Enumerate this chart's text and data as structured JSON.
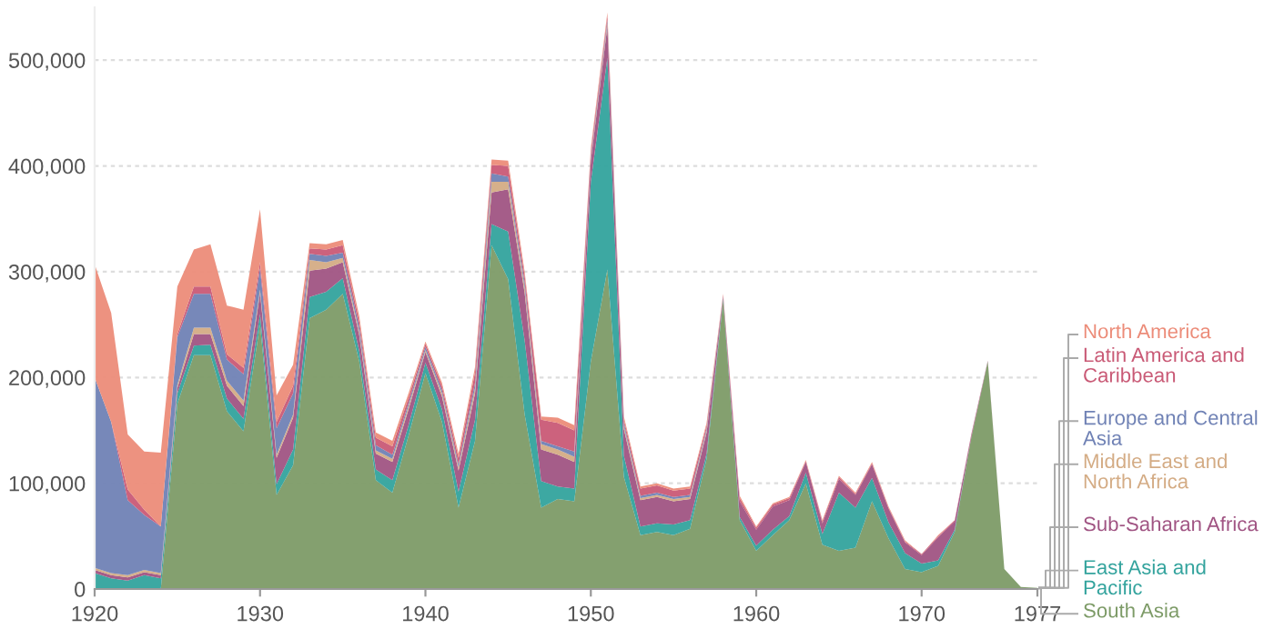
{
  "chart_data": {
    "type": "area",
    "stacked": true,
    "x": [
      1920,
      1921,
      1922,
      1923,
      1924,
      1925,
      1926,
      1927,
      1928,
      1929,
      1930,
      1931,
      1932,
      1933,
      1934,
      1935,
      1936,
      1937,
      1938,
      1939,
      1940,
      1941,
      1942,
      1943,
      1944,
      1945,
      1946,
      1947,
      1948,
      1949,
      1950,
      1951,
      1952,
      1953,
      1954,
      1955,
      1956,
      1957,
      1958,
      1959,
      1960,
      1961,
      1962,
      1963,
      1964,
      1965,
      1966,
      1967,
      1968,
      1969,
      1970,
      1971,
      1972,
      1973,
      1974,
      1975,
      1976,
      1977
    ],
    "series": [
      {
        "name": "South Asia",
        "color": "#7d9b67",
        "values": [
          0,
          0,
          0,
          0,
          0,
          175000,
          221000,
          221000,
          168000,
          149000,
          250000,
          89000,
          117000,
          256000,
          264000,
          279000,
          215000,
          103000,
          91000,
          146000,
          204000,
          158000,
          77000,
          140000,
          325000,
          293000,
          165000,
          77000,
          85000,
          83000,
          215000,
          302000,
          106000,
          51000,
          54000,
          51000,
          57000,
          123000,
          273000,
          65000,
          36000,
          51000,
          65000,
          100000,
          42000,
          36000,
          39000,
          83000,
          48000,
          19000,
          16000,
          22000,
          54000,
          143000,
          215000,
          19000,
          2000,
          1000
        ]
      },
      {
        "name": "East Asia and Pacific",
        "color": "#33a39d",
        "values": [
          15000,
          10000,
          8000,
          13000,
          10000,
          10000,
          9000,
          10000,
          12000,
          12000,
          10000,
          10000,
          15000,
          20000,
          17000,
          15000,
          10000,
          10000,
          12000,
          10000,
          10000,
          12000,
          15000,
          20000,
          20000,
          45000,
          70000,
          25000,
          12000,
          12000,
          170000,
          200000,
          20000,
          8000,
          8000,
          10000,
          8000,
          5000,
          2000,
          3000,
          5000,
          5000,
          4000,
          10000,
          10000,
          55000,
          38000,
          22000,
          15000,
          15000,
          8000,
          5000,
          2000,
          0,
          0,
          0,
          0,
          0
        ]
      },
      {
        "name": "Sub-Saharan Africa",
        "color": "#a05483",
        "values": [
          3000,
          3000,
          3000,
          3000,
          3000,
          5000,
          11000,
          10000,
          12000,
          12000,
          20000,
          25000,
          30000,
          25000,
          22000,
          15000,
          15000,
          15000,
          17000,
          15000,
          10000,
          12000,
          20000,
          25000,
          30000,
          40000,
          45000,
          30000,
          30000,
          25000,
          20000,
          30000,
          25000,
          25000,
          25000,
          22000,
          20000,
          20000,
          2000,
          15000,
          15000,
          22000,
          15000,
          10000,
          10000,
          13000,
          12000,
          13000,
          13000,
          10000,
          8000,
          22000,
          8000,
          2000,
          1000,
          0,
          0,
          0
        ]
      },
      {
        "name": "Middle East and North Africa",
        "color": "#d4ac85",
        "values": [
          2000,
          2000,
          2000,
          2000,
          2000,
          3000,
          6000,
          6000,
          5000,
          5000,
          3000,
          3000,
          3000,
          10000,
          6000,
          4000,
          3000,
          3000,
          3000,
          3000,
          2000,
          3000,
          3000,
          5000,
          10000,
          7000,
          5000,
          5000,
          5000,
          5000,
          2000,
          3000,
          3000,
          2000,
          2000,
          2000,
          2000,
          2000,
          0,
          0,
          0,
          0,
          0,
          0,
          0,
          0,
          0,
          0,
          0,
          0,
          0,
          0,
          0,
          0,
          0,
          0,
          0,
          0
        ]
      },
      {
        "name": "Europe and Central Asia",
        "color": "#7082b5",
        "values": [
          180000,
          143000,
          71000,
          52000,
          44000,
          45000,
          32000,
          32000,
          20000,
          25000,
          20000,
          25000,
          20000,
          6000,
          6000,
          5000,
          5000,
          5000,
          4000,
          3000,
          3000,
          3000,
          3000,
          5000,
          8000,
          5000,
          5000,
          3000,
          3000,
          5000,
          2000,
          3000,
          3000,
          2000,
          2000,
          2000,
          2000,
          2000,
          0,
          0,
          0,
          0,
          0,
          0,
          0,
          0,
          0,
          0,
          0,
          0,
          0,
          0,
          0,
          0,
          0,
          0,
          0,
          0
        ]
      },
      {
        "name": "Latin America and Caribbean",
        "color": "#c95a76",
        "values": [
          0,
          0,
          10000,
          5000,
          0,
          3000,
          7000,
          7000,
          5000,
          6000,
          6000,
          6000,
          7000,
          5000,
          6000,
          7000,
          5000,
          7000,
          8000,
          5000,
          3000,
          4000,
          6000,
          10000,
          8000,
          10000,
          6000,
          20000,
          22000,
          20000,
          5000,
          4000,
          3000,
          7000,
          7000,
          6000,
          6000,
          3000,
          1000,
          3000,
          2000,
          2000,
          2000,
          1000,
          2000,
          2000,
          1000,
          1000,
          1000,
          1000,
          1000,
          1000,
          1000,
          1000,
          0,
          0,
          0,
          0
        ]
      },
      {
        "name": "North America",
        "color": "#ec8c79",
        "values": [
          107000,
          103000,
          52000,
          55000,
          70000,
          45000,
          35000,
          40000,
          46000,
          55000,
          50000,
          25000,
          20000,
          5000,
          5000,
          5000,
          5000,
          5000,
          5000,
          4000,
          2000,
          3000,
          4000,
          5000,
          5000,
          5000,
          4000,
          3000,
          5000,
          5000,
          3000,
          3000,
          3000,
          2000,
          2000,
          2000,
          2000,
          2000,
          1000,
          2000,
          1000,
          1000,
          1000,
          1000,
          1000,
          1000,
          1000,
          1000,
          1000,
          1000,
          0,
          1000,
          0,
          0,
          0,
          0,
          0,
          0
        ]
      }
    ],
    "xlim": [
      1920,
      1977
    ],
    "xticks": [
      1920,
      1930,
      1940,
      1950,
      1960,
      1970,
      1977
    ],
    "ylim": [
      0,
      550000
    ],
    "yticks": [
      0,
      {
        "value": 100000,
        "label": "100,000"
      },
      {
        "value": 200000,
        "label": "200,000"
      },
      {
        "value": 300000,
        "label": "300,000"
      },
      {
        "value": 400000,
        "label": "400,000"
      },
      {
        "value": 500000,
        "label": "500,000"
      }
    ],
    "grid": "y",
    "legend": "right"
  }
}
